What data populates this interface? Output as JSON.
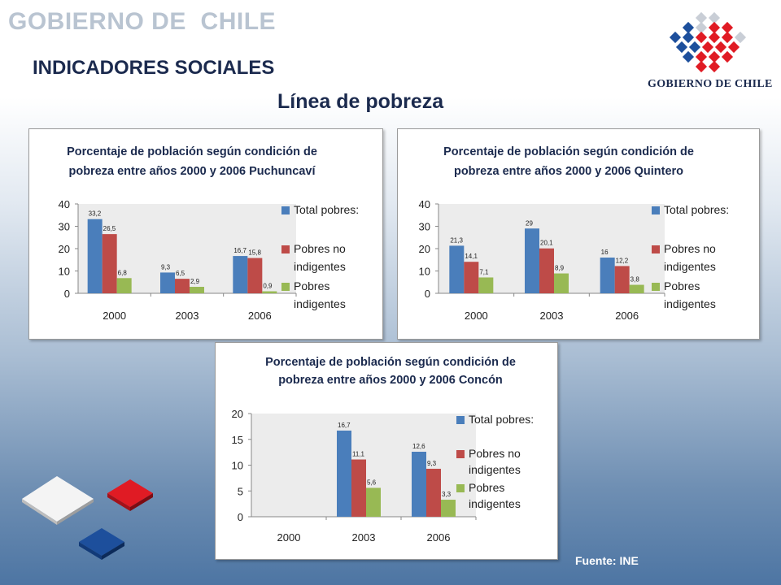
{
  "header": {
    "brand": "GOBIERNO DE  CHILE",
    "section": "INDICADORES SOCIALES",
    "subtitle": "Línea de pobreza"
  },
  "logo": {
    "text": "GOBIERNO DE CHILE"
  },
  "source": "Fuente:  INE",
  "colors": {
    "total": "#4a7ebb",
    "no_indigentes": "#be4b48",
    "indigentes": "#98b954",
    "title": "#1b2a4e"
  },
  "chart_data": [
    {
      "type": "bar",
      "title_lines": [
        "Porcentaje de población según condición de",
        "pobreza entre años 2000 y 2006 Puchuncaví"
      ],
      "categories": [
        "2000",
        "2003",
        "2006"
      ],
      "ylim": [
        0,
        40
      ],
      "yticks": [
        "0",
        "10",
        "20",
        "30",
        "40"
      ],
      "grid": false,
      "legend": "right",
      "series": [
        {
          "name_lines": [
            "Total pobres:"
          ],
          "values": [
            33.2,
            9.3,
            16.7
          ],
          "labels": [
            "33,2",
            "9,3",
            "16,7"
          ]
        },
        {
          "name_lines": [
            "Pobres no",
            "indigentes"
          ],
          "values": [
            26.5,
            6.5,
            15.8
          ],
          "labels": [
            "26,5",
            "6,5",
            "15,8"
          ]
        },
        {
          "name_lines": [
            "Pobres",
            "indigentes"
          ],
          "values": [
            6.8,
            2.9,
            0.9
          ],
          "labels": [
            "6,8",
            "2,9",
            "0,9"
          ]
        }
      ]
    },
    {
      "type": "bar",
      "title_lines": [
        "Porcentaje de población según condición de",
        "pobreza entre años 2000 y 2006 Quintero"
      ],
      "categories": [
        "2000",
        "2003",
        "2006"
      ],
      "ylim": [
        0,
        40
      ],
      "yticks": [
        "0",
        "10",
        "20",
        "30",
        "40"
      ],
      "grid": false,
      "legend": "right",
      "series": [
        {
          "name_lines": [
            "Total pobres:"
          ],
          "values": [
            21.3,
            29,
            16
          ],
          "labels": [
            "21,3",
            "29",
            "16"
          ]
        },
        {
          "name_lines": [
            "Pobres no",
            "indigentes"
          ],
          "values": [
            14.1,
            20.1,
            12.2
          ],
          "labels": [
            "14,1",
            "20,1",
            "12,2"
          ]
        },
        {
          "name_lines": [
            "Pobres",
            "indigentes"
          ],
          "values": [
            7.1,
            8.9,
            3.8
          ],
          "labels": [
            "7,1",
            "8,9",
            "3,8"
          ]
        }
      ]
    },
    {
      "type": "bar",
      "title_lines": [
        "Porcentaje de población según condición de",
        "pobreza entre años 2000 y 2006 Concón"
      ],
      "categories": [
        "2000",
        "2003",
        "2006"
      ],
      "ylim": [
        0,
        20
      ],
      "yticks": [
        "0",
        "5",
        "10",
        "15",
        "20"
      ],
      "grid": false,
      "legend": "right",
      "series": [
        {
          "name_lines": [
            "Total pobres:"
          ],
          "values": [
            null,
            16.7,
            12.6
          ],
          "labels": [
            "",
            "16,7",
            "12,6"
          ]
        },
        {
          "name_lines": [
            "Pobres no",
            "indigentes"
          ],
          "values": [
            null,
            11.1,
            9.3
          ],
          "labels": [
            "",
            "11,1",
            "9,3"
          ]
        },
        {
          "name_lines": [
            "Pobres",
            "indigentes"
          ],
          "values": [
            null,
            5.6,
            3.3
          ],
          "labels": [
            "",
            "5,6",
            "3,3"
          ]
        }
      ]
    }
  ]
}
